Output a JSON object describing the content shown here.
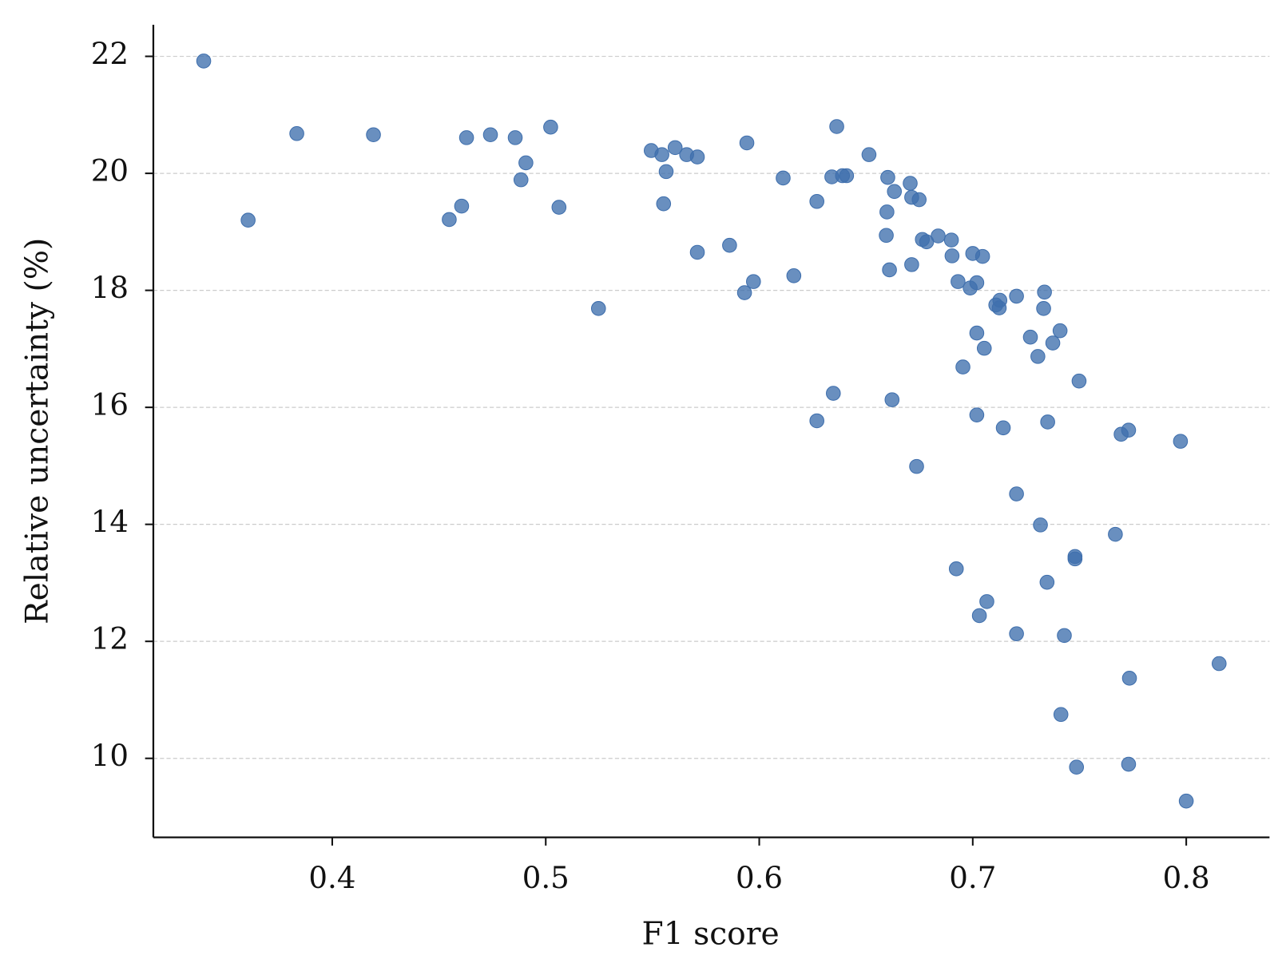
{
  "chart_data": {
    "type": "scatter",
    "x_label": "F1 score",
    "y_label": "Relative uncertainty (%)",
    "color": "#3f6fad",
    "grid": "y",
    "xlim": [
      0.3162,
      0.839
    ],
    "ylim": [
      8.65,
      22.54
    ],
    "xticks": [
      0.4,
      0.5,
      0.6,
      0.7,
      0.8
    ],
    "yticks": [
      10,
      12,
      14,
      16,
      18,
      20,
      22
    ],
    "x": [
      0.3398,
      0.3606,
      0.3834,
      0.4193,
      0.4548,
      0.4606,
      0.4629,
      0.4741,
      0.4857,
      0.4884,
      0.4907,
      0.5023,
      0.5062,
      0.5247,
      0.5494,
      0.5544,
      0.5564,
      0.5552,
      0.5606,
      0.566,
      0.571,
      0.571,
      0.5861,
      0.5942,
      0.5931,
      0.5973,
      0.6112,
      0.6162,
      0.627,
      0.627,
      0.634,
      0.6347,
      0.6363,
      0.639,
      0.6409,
      0.6514,
      0.6602,
      0.6598,
      0.6595,
      0.661,
      0.6622,
      0.6633,
      0.6707,
      0.6714,
      0.6749,
      0.6714,
      0.6737,
      0.6764,
      0.6784,
      0.6838,
      0.69,
      0.6903,
      0.7,
      0.7046,
      0.6931,
      0.6988,
      0.7019,
      0.6923,
      0.6954,
      0.7019,
      0.7054,
      0.7019,
      0.7031,
      0.7066,
      0.7108,
      0.7127,
      0.7124,
      0.7143,
      0.7205,
      0.7205,
      0.7205,
      0.727,
      0.7305,
      0.7317,
      0.7336,
      0.7332,
      0.7348,
      0.7351,
      0.7375,
      0.7409,
      0.7413,
      0.7429,
      0.7479,
      0.7479,
      0.7498,
      0.7486,
      0.7668,
      0.7695,
      0.773,
      0.7734,
      0.773,
      0.7973,
      0.8,
      0.8154
    ],
    "y": [
      21.92,
      19.2,
      20.68,
      20.66,
      19.21,
      19.44,
      20.61,
      20.66,
      20.61,
      19.89,
      20.18,
      20.79,
      19.42,
      17.69,
      20.39,
      20.32,
      20.03,
      19.48,
      20.44,
      20.32,
      20.28,
      18.65,
      18.77,
      20.52,
      17.96,
      18.15,
      19.92,
      18.25,
      19.52,
      15.77,
      19.94,
      16.24,
      20.8,
      19.96,
      19.96,
      20.32,
      19.93,
      19.34,
      18.94,
      18.35,
      16.13,
      19.69,
      19.83,
      19.59,
      19.55,
      18.44,
      14.99,
      18.87,
      18.83,
      18.93,
      18.86,
      18.59,
      18.63,
      18.58,
      18.15,
      18.04,
      18.13,
      13.24,
      16.69,
      17.27,
      17.01,
      15.87,
      12.44,
      12.68,
      17.75,
      17.83,
      17.7,
      15.65,
      17.9,
      14.52,
      12.13,
      17.2,
      16.87,
      13.99,
      17.97,
      17.69,
      13.01,
      15.75,
      17.1,
      17.31,
      10.75,
      12.1,
      13.45,
      13.41,
      16.45,
      9.85,
      13.83,
      15.54,
      15.61,
      11.37,
      9.9,
      15.42,
      9.27,
      11.62
    ]
  }
}
